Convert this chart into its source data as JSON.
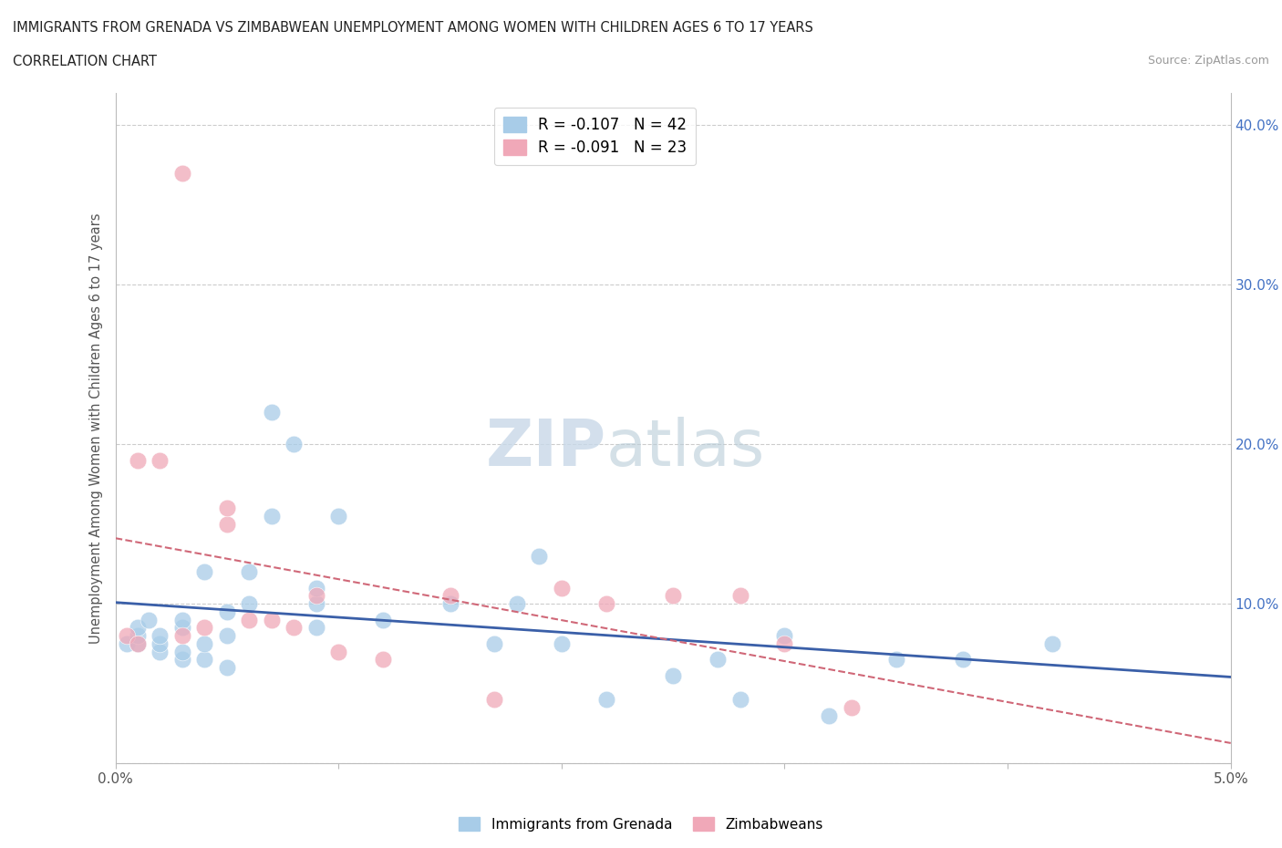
{
  "title_line1": "IMMIGRANTS FROM GRENADA VS ZIMBABWEAN UNEMPLOYMENT AMONG WOMEN WITH CHILDREN AGES 6 TO 17 YEARS",
  "title_line2": "CORRELATION CHART",
  "source_text": "Source: ZipAtlas.com",
  "ylabel": "Unemployment Among Women with Children Ages 6 to 17 years",
  "xlim": [
    0.0,
    0.05
  ],
  "ylim": [
    0.0,
    0.42
  ],
  "x_ticks": [
    0.0,
    0.01,
    0.02,
    0.03,
    0.04,
    0.05
  ],
  "x_tick_labels": [
    "0.0%",
    "",
    "",
    "",
    "",
    "5.0%"
  ],
  "y_ticks": [
    0.0,
    0.1,
    0.2,
    0.3,
    0.4
  ],
  "y_tick_labels_right": [
    "",
    "10.0%",
    "20.0%",
    "30.0%",
    "40.0%"
  ],
  "legend_entry1": "R = -0.107   N = 42",
  "legend_entry2": "R = -0.091   N = 23",
  "color_blue": "#a8cce8",
  "color_pink": "#f0a8b8",
  "line_color_blue": "#3a5fa8",
  "line_color_pink": "#d06878",
  "watermark_zip": "ZIP",
  "watermark_atlas": "atlas",
  "grenada_x": [
    0.0005,
    0.001,
    0.001,
    0.001,
    0.0015,
    0.002,
    0.002,
    0.002,
    0.003,
    0.003,
    0.003,
    0.003,
    0.004,
    0.004,
    0.004,
    0.005,
    0.005,
    0.005,
    0.006,
    0.006,
    0.007,
    0.007,
    0.008,
    0.009,
    0.009,
    0.009,
    0.01,
    0.012,
    0.015,
    0.017,
    0.018,
    0.019,
    0.02,
    0.022,
    0.025,
    0.027,
    0.028,
    0.03,
    0.032,
    0.035,
    0.038,
    0.042
  ],
  "grenada_y": [
    0.075,
    0.075,
    0.08,
    0.085,
    0.09,
    0.07,
    0.075,
    0.08,
    0.065,
    0.07,
    0.085,
    0.09,
    0.065,
    0.075,
    0.12,
    0.06,
    0.08,
    0.095,
    0.1,
    0.12,
    0.155,
    0.22,
    0.2,
    0.085,
    0.1,
    0.11,
    0.155,
    0.09,
    0.1,
    0.075,
    0.1,
    0.13,
    0.075,
    0.04,
    0.055,
    0.065,
    0.04,
    0.08,
    0.03,
    0.065,
    0.065,
    0.075
  ],
  "zimbabwe_x": [
    0.0005,
    0.001,
    0.001,
    0.002,
    0.003,
    0.003,
    0.004,
    0.005,
    0.005,
    0.006,
    0.007,
    0.008,
    0.009,
    0.01,
    0.012,
    0.015,
    0.017,
    0.02,
    0.022,
    0.025,
    0.028,
    0.03,
    0.033
  ],
  "zimbabwe_y": [
    0.08,
    0.075,
    0.19,
    0.19,
    0.08,
    0.37,
    0.085,
    0.15,
    0.16,
    0.09,
    0.09,
    0.085,
    0.105,
    0.07,
    0.065,
    0.105,
    0.04,
    0.11,
    0.1,
    0.105,
    0.105,
    0.075,
    0.035
  ]
}
